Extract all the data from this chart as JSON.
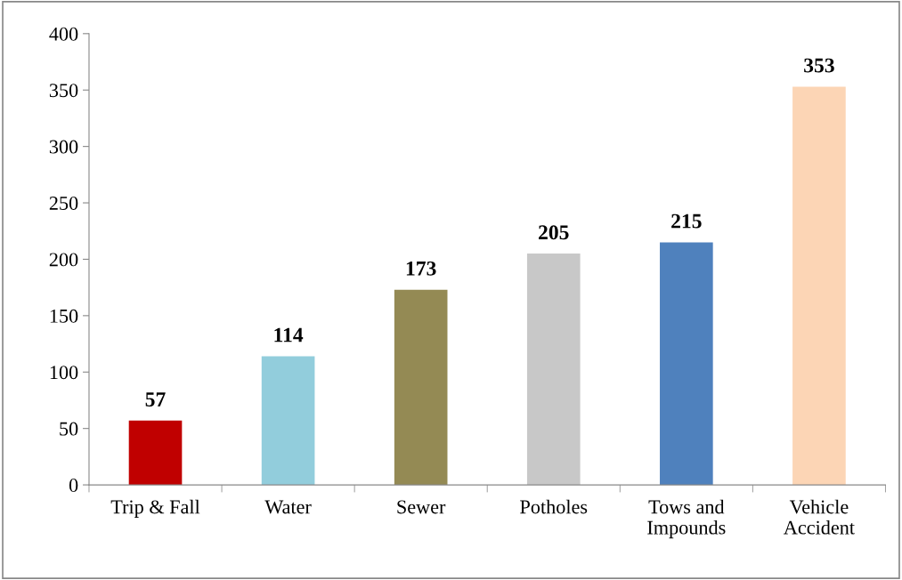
{
  "chart_data": {
    "type": "bar",
    "categories": [
      "Trip & Fall",
      "Water",
      "Sewer",
      "Potholes",
      "Tows and\nImpounds",
      "Vehicle\nAccident"
    ],
    "values": [
      57,
      114,
      173,
      205,
      215,
      353
    ],
    "colors": [
      "#c00000",
      "#92cddc",
      "#948a54",
      "#c8c8c8",
      "#4f81bd",
      "#fcd5b5"
    ],
    "ylim": [
      0,
      400
    ],
    "yticks": [
      0,
      50,
      100,
      150,
      200,
      250,
      300,
      350,
      400
    ],
    "data_labels": true,
    "grid": false,
    "legend": false
  }
}
